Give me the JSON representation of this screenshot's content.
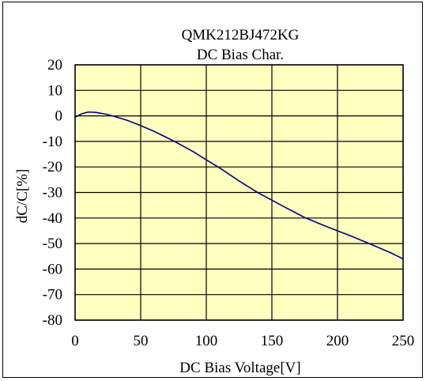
{
  "chart_data": {
    "type": "line",
    "title": "QMK212BJ472KG",
    "subtitle": "DC Bias Char.",
    "xlabel": "DC Bias Voltage[V]",
    "ylabel": "dC/C[%]",
    "xlim": [
      0,
      250
    ],
    "ylim": [
      -80,
      20
    ],
    "xticks": [
      0,
      50,
      100,
      150,
      200,
      250
    ],
    "yticks": [
      20,
      10,
      0,
      -10,
      -20,
      -30,
      -40,
      -50,
      -60,
      -70,
      -80
    ],
    "grid": true,
    "legend": "none",
    "colors": {
      "plot_background": "#ffffc0",
      "line": "#000080",
      "grid": "#000000"
    },
    "series": [
      {
        "x": [
          0,
          5,
          10,
          15,
          20,
          25,
          30,
          40,
          50,
          60,
          75,
          90,
          100,
          110,
          125,
          140,
          150,
          160,
          175,
          190,
          200,
          210,
          225,
          240,
          250
        ],
        "values": [
          -0.5,
          0.8,
          1.5,
          1.4,
          1.0,
          0.5,
          -0.2,
          -1.8,
          -3.8,
          -6.0,
          -9.8,
          -14.0,
          -17.2,
          -20.3,
          -25.5,
          -30.3,
          -33.0,
          -35.8,
          -39.8,
          -43.0,
          -45.0,
          -47.0,
          -50.2,
          -53.5,
          -56.0
        ]
      }
    ]
  }
}
